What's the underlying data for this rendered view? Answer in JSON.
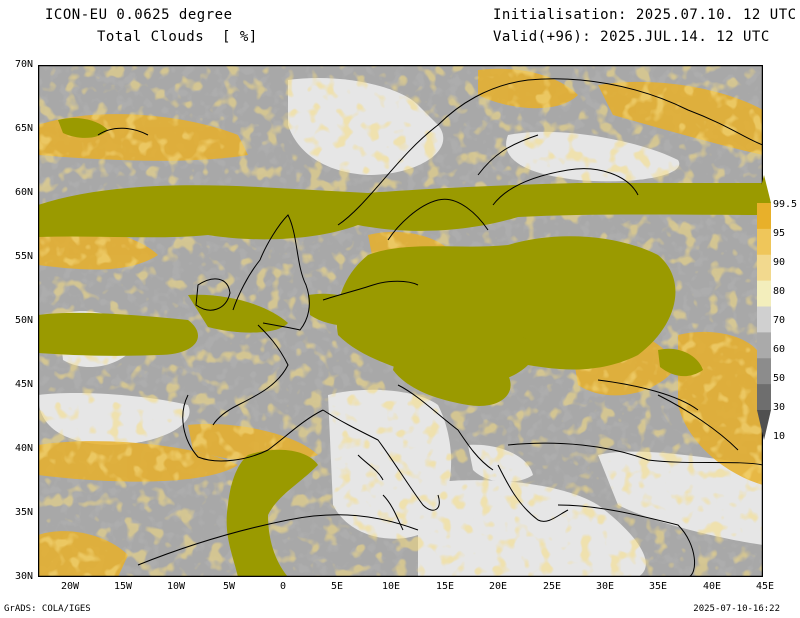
{
  "header": {
    "title_line1": "ICON-EU 0.0625 degree",
    "title_line2": "Total Clouds  [ %]",
    "init_line": "Initialisation: 2025.07.10. 12 UTC",
    "valid_line": "Valid(+96): 2025.JUL.14. 12 UTC"
  },
  "axes": {
    "lat_labels": [
      "70N",
      "65N",
      "60N",
      "55N",
      "50N",
      "45N",
      "40N",
      "35N",
      "30N"
    ],
    "lon_labels": [
      "20W",
      "15W",
      "10W",
      "5W",
      "0",
      "5E",
      "10E",
      "15E",
      "20E",
      "25E",
      "30E",
      "35E",
      "40E",
      "45E"
    ]
  },
  "legend": {
    "labels": [
      "99.5",
      "95",
      "90",
      "80",
      "70",
      "60",
      "50",
      "30",
      "10"
    ],
    "colors": [
      "#9a9a00",
      "#e8b02a",
      "#efc65a",
      "#f2d98e",
      "#f3eebc",
      "#d0d0d0",
      "#aaaaaa",
      "#8c8c8c",
      "#6e6e6e",
      "#505050"
    ]
  },
  "colors": {
    "land_clear": "#e6e6e6",
    "cloud_full": "#9a9a00",
    "cloud_grey": "#a8a8a8",
    "cloud_yellow": "#e8b02a"
  },
  "footer": {
    "left": "GrADS: COLA/IGES",
    "right": "2025-07-10-16:22"
  }
}
